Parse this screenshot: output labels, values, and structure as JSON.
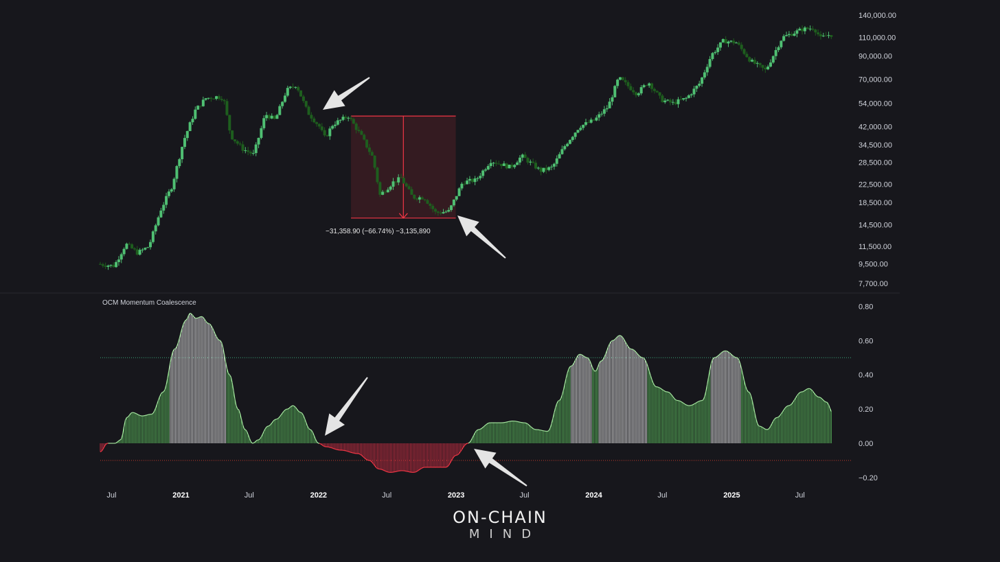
{
  "chart_data": [
    {
      "type": "candlestick",
      "title": "",
      "scale": "log",
      "y_ticks": [
        "140,000.00",
        "110,000.00",
        "90,000.00",
        "70,000.00",
        "54,000.00",
        "42,000.00",
        "34,500.00",
        "28,500.00",
        "22,500.00",
        "18,500.00",
        "14,500.00",
        "11,500.00",
        "9,500.00",
        "7,700.00"
      ],
      "y_tick_values": [
        140000,
        110000,
        90000,
        70000,
        54000,
        42000,
        34500,
        28500,
        22500,
        18500,
        14500,
        11500,
        9500,
        7700
      ],
      "ylim": [
        7200,
        150000
      ],
      "xlim": [
        "2020-06-01",
        "2025-10-01"
      ],
      "series": [
        {
          "values": [
            [
              "2020-06-01",
              9500
            ],
            [
              "2020-07-15",
              9300
            ],
            [
              "2020-08-15",
              11800
            ],
            [
              "2020-09-15",
              10700
            ],
            [
              "2020-10-15",
              11500
            ],
            [
              "2020-11-15",
              17000
            ],
            [
              "2020-12-15",
              22000
            ],
            [
              "2021-01-15",
              36000
            ],
            [
              "2021-02-15",
              50000
            ],
            [
              "2021-03-15",
              57000
            ],
            [
              "2021-04-15",
              58000
            ],
            [
              "2021-05-01",
              57000
            ],
            [
              "2021-05-20",
              38000
            ],
            [
              "2021-06-20",
              33000
            ],
            [
              "2021-07-20",
              31000
            ],
            [
              "2021-08-20",
              48000
            ],
            [
              "2021-09-15",
              45000
            ],
            [
              "2021-10-15",
              62000
            ],
            [
              "2021-11-10",
              66000
            ],
            [
              "2021-12-10",
              49000
            ],
            [
              "2022-01-10",
              42000
            ],
            [
              "2022-01-25",
              37000
            ],
            [
              "2022-02-15",
              43000
            ],
            [
              "2022-03-28",
              47000
            ],
            [
              "2022-05-01",
              38000
            ],
            [
              "2022-06-01",
              30000
            ],
            [
              "2022-06-20",
              20000
            ],
            [
              "2022-07-25",
              23000
            ],
            [
              "2022-08-15",
              24000
            ],
            [
              "2022-09-15",
              19500
            ],
            [
              "2022-10-15",
              19500
            ],
            [
              "2022-11-15",
              16500
            ],
            [
              "2022-12-20",
              16800
            ],
            [
              "2023-01-25",
              23000
            ],
            [
              "2023-03-01",
              23500
            ],
            [
              "2023-04-10",
              29000
            ],
            [
              "2023-06-01",
              27000
            ],
            [
              "2023-07-01",
              30500
            ],
            [
              "2023-08-20",
              26000
            ],
            [
              "2023-09-20",
              27000
            ],
            [
              "2023-10-25",
              34500
            ],
            [
              "2023-12-01",
              42000
            ],
            [
              "2024-01-10",
              45000
            ],
            [
              "2024-02-15",
              52000
            ],
            [
              "2024-03-14",
              71000
            ],
            [
              "2024-05-01",
              60000
            ],
            [
              "2024-06-01",
              68000
            ],
            [
              "2024-07-05",
              56000
            ],
            [
              "2024-08-05",
              54000
            ],
            [
              "2024-09-10",
              57000
            ],
            [
              "2024-10-15",
              67000
            ],
            [
              "2024-11-15",
              91000
            ],
            [
              "2024-12-17",
              106000
            ],
            [
              "2025-01-20",
              104000
            ],
            [
              "2025-02-28",
              85000
            ],
            [
              "2025-04-08",
              77000
            ],
            [
              "2025-05-22",
              110000
            ],
            [
              "2025-07-14",
              120000
            ],
            [
              "2025-08-14",
              122000
            ],
            [
              "2025-09-01",
              109000
            ],
            [
              "2025-09-20",
              113000
            ]
          ]
        }
      ],
      "measure": {
        "label": "−31,358.90 (−66.74%) −3,135,890",
        "from": [
          "2022-03-28",
          47000
        ],
        "to": [
          "2022-12-20",
          15600
        ]
      }
    },
    {
      "type": "area",
      "title": "OCM Momentum Coalescence",
      "y_ticks": [
        "0.80",
        "0.60",
        "0.40",
        "0.20",
        "0.00",
        "−0.20"
      ],
      "y_tick_values": [
        0.8,
        0.6,
        0.4,
        0.2,
        0.0,
        -0.2
      ],
      "ylim": [
        -0.26,
        0.86
      ],
      "levels": [
        0.5,
        -0.1
      ],
      "x_ticks": [
        {
          "label": "Jul",
          "date": "2020-07-01"
        },
        {
          "label": "2021",
          "date": "2021-01-01"
        },
        {
          "label": "Jul",
          "date": "2021-07-01"
        },
        {
          "label": "2022",
          "date": "2022-01-01"
        },
        {
          "label": "Jul",
          "date": "2022-07-01"
        },
        {
          "label": "2023",
          "date": "2023-01-01"
        },
        {
          "label": "Jul",
          "date": "2023-07-01"
        },
        {
          "label": "2024",
          "date": "2024-01-01"
        },
        {
          "label": "Jul",
          "date": "2024-07-01"
        },
        {
          "label": "2025",
          "date": "2025-01-01"
        },
        {
          "label": "Jul",
          "date": "2025-07-01"
        }
      ],
      "series": [
        {
          "values": [
            [
              "2020-06-01",
              -0.05
            ],
            [
              "2020-06-20",
              0.0
            ],
            [
              "2020-07-10",
              0.0
            ],
            [
              "2020-07-25",
              0.02
            ],
            [
              "2020-08-10",
              0.15
            ],
            [
              "2020-08-25",
              0.18
            ],
            [
              "2020-09-20",
              0.16
            ],
            [
              "2020-10-15",
              0.17
            ],
            [
              "2020-11-15",
              0.3
            ],
            [
              "2020-12-15",
              0.55
            ],
            [
              "2021-01-15",
              0.72
            ],
            [
              "2021-01-25",
              0.76
            ],
            [
              "2021-02-10",
              0.73
            ],
            [
              "2021-02-25",
              0.74
            ],
            [
              "2021-03-15",
              0.7
            ],
            [
              "2021-04-15",
              0.6
            ],
            [
              "2021-05-10",
              0.4
            ],
            [
              "2021-06-01",
              0.2
            ],
            [
              "2021-06-20",
              0.08
            ],
            [
              "2021-07-10",
              0.0
            ],
            [
              "2021-07-25",
              0.02
            ],
            [
              "2021-08-20",
              0.1
            ],
            [
              "2021-09-10",
              0.14
            ],
            [
              "2021-10-10",
              0.2
            ],
            [
              "2021-10-25",
              0.22
            ],
            [
              "2021-11-15",
              0.18
            ],
            [
              "2021-12-10",
              0.08
            ],
            [
              "2022-01-01",
              0.0
            ],
            [
              "2022-01-20",
              -0.02
            ],
            [
              "2022-03-01",
              -0.04
            ],
            [
              "2022-04-15",
              -0.06
            ],
            [
              "2022-05-15",
              -0.1
            ],
            [
              "2022-06-10",
              -0.15
            ],
            [
              "2022-07-10",
              -0.17
            ],
            [
              "2022-08-10",
              -0.16
            ],
            [
              "2022-09-10",
              -0.17
            ],
            [
              "2022-10-10",
              -0.14
            ],
            [
              "2022-11-10",
              -0.14
            ],
            [
              "2022-12-05",
              -0.14
            ],
            [
              "2023-01-01",
              -0.07
            ],
            [
              "2023-02-01",
              0.0
            ],
            [
              "2023-03-01",
              0.08
            ],
            [
              "2023-04-01",
              0.12
            ],
            [
              "2023-05-01",
              0.12
            ],
            [
              "2023-06-01",
              0.13
            ],
            [
              "2023-07-01",
              0.12
            ],
            [
              "2023-08-01",
              0.08
            ],
            [
              "2023-09-01",
              0.07
            ],
            [
              "2023-10-01",
              0.25
            ],
            [
              "2023-11-01",
              0.45
            ],
            [
              "2023-11-25",
              0.52
            ],
            [
              "2023-12-15",
              0.5
            ],
            [
              "2024-01-05",
              0.42
            ],
            [
              "2024-01-20",
              0.48
            ],
            [
              "2024-02-20",
              0.6
            ],
            [
              "2024-03-10",
              0.63
            ],
            [
              "2024-04-10",
              0.55
            ],
            [
              "2024-05-10",
              0.5
            ],
            [
              "2024-06-15",
              0.33
            ],
            [
              "2024-07-15",
              0.3
            ],
            [
              "2024-08-10",
              0.25
            ],
            [
              "2024-09-10",
              0.22
            ],
            [
              "2024-10-15",
              0.25
            ],
            [
              "2024-11-15",
              0.5
            ],
            [
              "2024-12-15",
              0.54
            ],
            [
              "2025-01-15",
              0.5
            ],
            [
              "2025-02-15",
              0.3
            ],
            [
              "2025-03-15",
              0.1
            ],
            [
              "2025-04-05",
              0.08
            ],
            [
              "2025-04-30",
              0.15
            ],
            [
              "2025-06-01",
              0.22
            ],
            [
              "2025-07-05",
              0.3
            ],
            [
              "2025-07-25",
              0.32
            ],
            [
              "2025-08-20",
              0.27
            ],
            [
              "2025-09-10",
              0.24
            ],
            [
              "2025-09-25",
              0.18
            ]
          ]
        }
      ]
    }
  ],
  "indicator_title": "OCM Momentum Coalescence",
  "measure_label": "−31,358.90 (−66.74%) −3,135,890",
  "logo": {
    "line1": "ON-CHAIN",
    "line2": "MIND"
  },
  "colors": {
    "background": "#17171c",
    "candle_up": "#4fbf72",
    "candle_down": "#1e5e1e",
    "measure": "#f23645",
    "measure_fill": "#3a1c22",
    "osc_positive_line": "#a6e6a0",
    "osc_negative_line": "#f23645",
    "osc_bar_high": "#e8e8e8",
    "osc_bar_mid": "#5fc160",
    "osc_bar_neg": "#d42f46",
    "level_upper": "#3aa57a",
    "level_lower": "#c0392b",
    "arrow": "#e4e4e4"
  }
}
